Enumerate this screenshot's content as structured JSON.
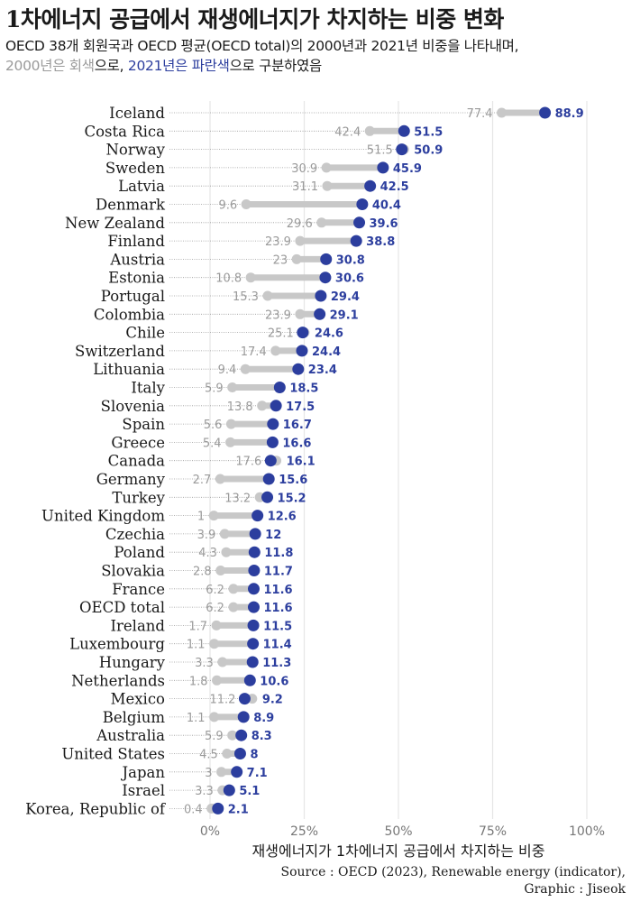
{
  "header": {
    "title": "1차에너지 공급에서 재생에너지가 차지하는 비중 변화",
    "subtitle_line1": "OECD 38개 회원국과 OECD 평균(OECD total)의 2000년과 2021년 비중을 나타내며,",
    "subtitle_gray": "2000년은 회색",
    "subtitle_mid": "으로, ",
    "subtitle_blue": "2021년은 파란색",
    "subtitle_end": "으로 구분하였음"
  },
  "caption": {
    "line1": "Source : OECD (2023), Renewable energy (indicator),",
    "line2": "Graphic : Jiseok"
  },
  "colors": {
    "y2000": "#c8c8c8",
    "y2021": "#2c3e9e",
    "label2000": "#9a9a9a",
    "grid": "#e6e6e6"
  },
  "chart_data": {
    "type": "dumbbell",
    "xlabel": "재생에너지가 1차에너지 공급에서 차지하는 비중",
    "xlim": [
      0,
      100
    ],
    "xticks": [
      0,
      25,
      50,
      75,
      100
    ],
    "xtick_labels": [
      "0%",
      "25%",
      "50%",
      "75%",
      "100%"
    ],
    "series_names": [
      "2000",
      "2021"
    ],
    "rows": [
      {
        "country": "Iceland",
        "y2000": 77.4,
        "y2021": 88.9
      },
      {
        "country": "Costa Rica",
        "y2000": 42.4,
        "y2021": 51.5
      },
      {
        "country": "Norway",
        "y2000": 51.5,
        "y2021": 50.9
      },
      {
        "country": "Sweden",
        "y2000": 30.9,
        "y2021": 45.9
      },
      {
        "country": "Latvia",
        "y2000": 31.1,
        "y2021": 42.5
      },
      {
        "country": "Denmark",
        "y2000": 9.6,
        "y2021": 40.4
      },
      {
        "country": "New Zealand",
        "y2000": 29.6,
        "y2021": 39.6
      },
      {
        "country": "Finland",
        "y2000": 23.9,
        "y2021": 38.8
      },
      {
        "country": "Austria",
        "y2000": 23,
        "y2021": 30.8
      },
      {
        "country": "Estonia",
        "y2000": 10.8,
        "y2021": 30.6
      },
      {
        "country": "Portugal",
        "y2000": 15.3,
        "y2021": 29.4
      },
      {
        "country": "Colombia",
        "y2000": 23.9,
        "y2021": 29.1
      },
      {
        "country": "Chile",
        "y2000": 25.1,
        "y2021": 24.6
      },
      {
        "country": "Switzerland",
        "y2000": 17.4,
        "y2021": 24.4
      },
      {
        "country": "Lithuania",
        "y2000": 9.4,
        "y2021": 23.4
      },
      {
        "country": "Italy",
        "y2000": 5.9,
        "y2021": 18.5
      },
      {
        "country": "Slovenia",
        "y2000": 13.8,
        "y2021": 17.5
      },
      {
        "country": "Spain",
        "y2000": 5.6,
        "y2021": 16.7
      },
      {
        "country": "Greece",
        "y2000": 5.4,
        "y2021": 16.6
      },
      {
        "country": "Canada",
        "y2000": 17.6,
        "y2021": 16.1
      },
      {
        "country": "Germany",
        "y2000": 2.7,
        "y2021": 15.6
      },
      {
        "country": "Turkey",
        "y2000": 13.2,
        "y2021": 15.2
      },
      {
        "country": "United Kingdom",
        "y2000": 1,
        "y2021": 12.6
      },
      {
        "country": "Czechia",
        "y2000": 3.9,
        "y2021": 12
      },
      {
        "country": "Poland",
        "y2000": 4.3,
        "y2021": 11.8
      },
      {
        "country": "Slovakia",
        "y2000": 2.8,
        "y2021": 11.7
      },
      {
        "country": "France",
        "y2000": 6.2,
        "y2021": 11.6
      },
      {
        "country": "OECD total",
        "y2000": 6.2,
        "y2021": 11.6
      },
      {
        "country": "Ireland",
        "y2000": 1.7,
        "y2021": 11.5
      },
      {
        "country": "Luxembourg",
        "y2000": 1.1,
        "y2021": 11.4
      },
      {
        "country": "Hungary",
        "y2000": 3.3,
        "y2021": 11.3
      },
      {
        "country": "Netherlands",
        "y2000": 1.8,
        "y2021": 10.6
      },
      {
        "country": "Mexico",
        "y2000": 11.2,
        "y2021": 9.2
      },
      {
        "country": "Belgium",
        "y2000": 1.1,
        "y2021": 8.9
      },
      {
        "country": "Australia",
        "y2000": 5.9,
        "y2021": 8.3
      },
      {
        "country": "United States",
        "y2000": 4.5,
        "y2021": 8
      },
      {
        "country": "Japan",
        "y2000": 3,
        "y2021": 7.1
      },
      {
        "country": "Israel",
        "y2000": 3.3,
        "y2021": 5.1
      },
      {
        "country": "Korea, Republic of",
        "y2000": 0.4,
        "y2021": 2.1
      }
    ]
  }
}
